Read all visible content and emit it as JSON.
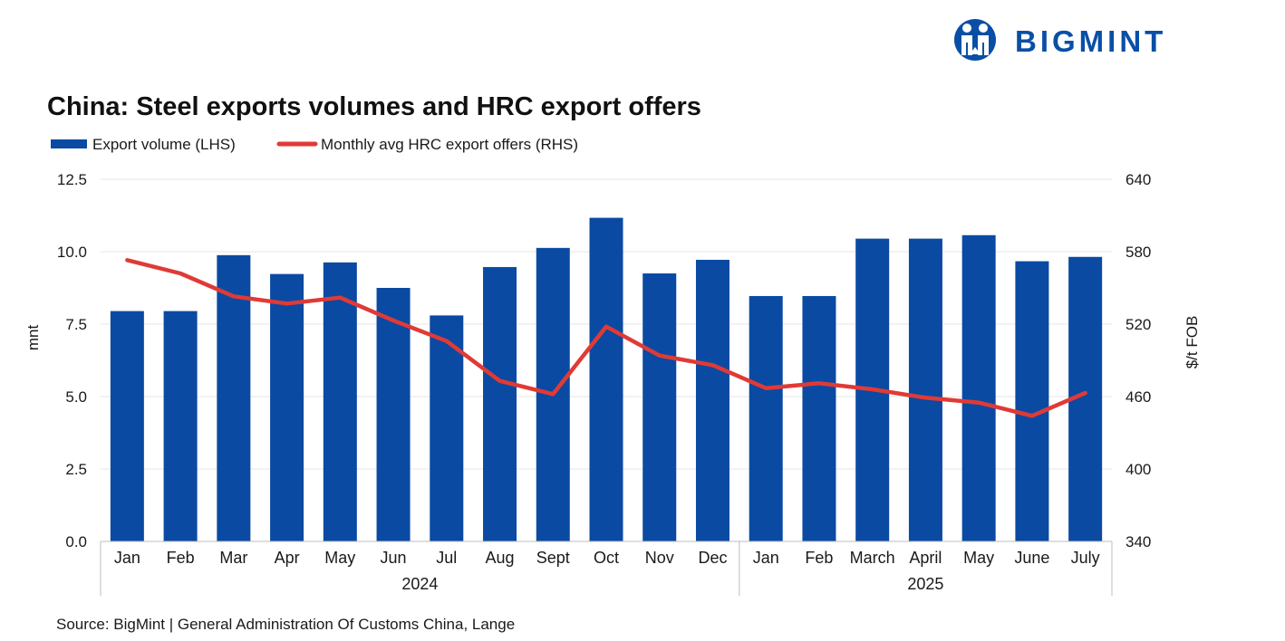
{
  "brand": {
    "name": "BIGMINT",
    "color": "#0a4fa6"
  },
  "chart_data": {
    "type": "bar+line",
    "title": "China: Steel exports volumes and HRC export offers",
    "legend": {
      "placement": "top-left",
      "entries": [
        "Export volume (LHS)",
        "Monthly avg HRC export offers (RHS)"
      ]
    },
    "categories": [
      "Jan",
      "Feb",
      "Mar",
      "Apr",
      "May",
      "Jun",
      "Jul",
      "Aug",
      "Sept",
      "Oct",
      "Nov",
      "Dec",
      "Jan",
      "Feb",
      "March",
      "April",
      "May",
      "June",
      "July"
    ],
    "groups": [
      {
        "label": "2024",
        "start": 0,
        "end": 11
      },
      {
        "label": "2025",
        "start": 12,
        "end": 18
      }
    ],
    "series": [
      {
        "name": "Export volume (LHS)",
        "type": "bar",
        "axis": "left",
        "color": "#0a4aa3",
        "values": [
          7.95,
          7.95,
          9.88,
          9.23,
          9.63,
          8.75,
          7.8,
          9.47,
          10.13,
          11.17,
          9.25,
          9.72,
          8.47,
          8.47,
          10.45,
          10.45,
          10.57,
          9.67,
          9.82
        ]
      },
      {
        "name": "Monthly avg HRC export offers (RHS)",
        "type": "line",
        "axis": "right",
        "color": "#e03a36",
        "values": [
          573,
          562,
          543,
          537,
          542,
          523,
          506,
          473,
          462,
          518,
          494,
          486,
          467,
          471,
          466,
          459,
          455,
          444,
          463
        ]
      }
    ],
    "ylabel": "mnt",
    "ylabel_right": "$/t FOB",
    "ylim": [
      0,
      12.5
    ],
    "ylim_right": [
      340,
      640
    ],
    "yticks": [
      "0.0",
      "2.5",
      "5.0",
      "7.5",
      "10.0",
      "12.5"
    ],
    "yticks_right": [
      "340",
      "400",
      "460",
      "520",
      "580",
      "640"
    ],
    "grid": true
  },
  "source": "Source: BigMint | General Administration Of Customs China, Lange"
}
